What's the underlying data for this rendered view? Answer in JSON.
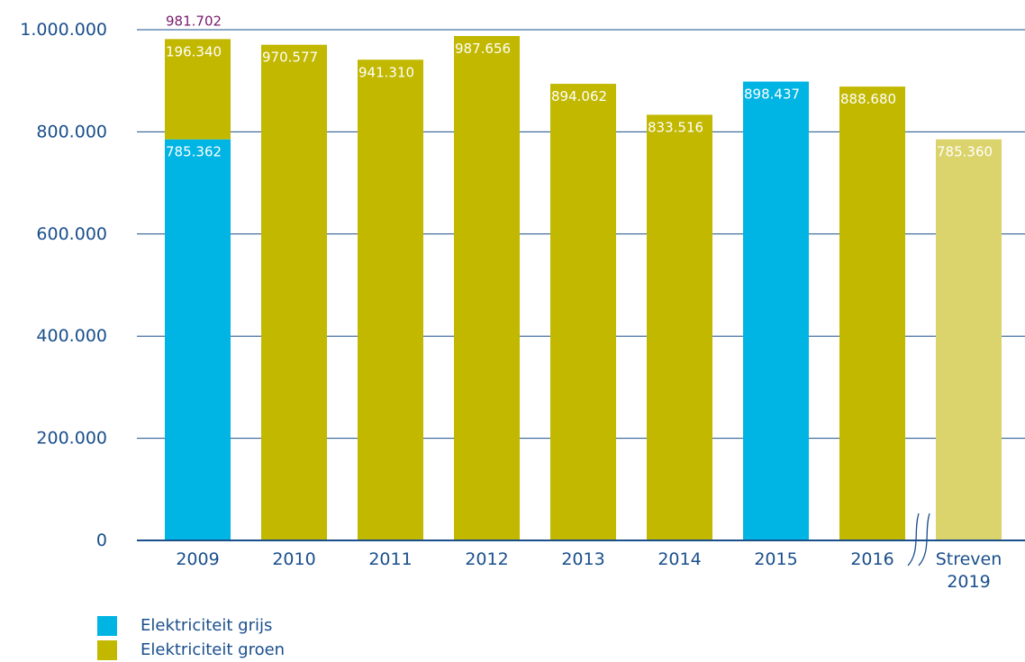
{
  "chart_data": {
    "type": "bar",
    "categories": [
      [
        "2009"
      ],
      [
        "2010"
      ],
      [
        "2011"
      ],
      [
        "2012"
      ],
      [
        "2013"
      ],
      [
        "2014"
      ],
      [
        "2015"
      ],
      [
        "2016"
      ],
      [
        "Streven",
        "2019"
      ]
    ],
    "series": [
      {
        "name": "Elektriciteit grijs",
        "values": [
          785362,
          0,
          0,
          0,
          0,
          0,
          898437,
          0,
          0
        ],
        "labels": [
          "785.362",
          "",
          "",
          "",
          "",
          "",
          "898.437",
          "",
          ""
        ]
      },
      {
        "name": "Elektriciteit groen",
        "values": [
          196340,
          970577,
          941310,
          987656,
          894062,
          833516,
          0,
          888680,
          785360
        ],
        "labels": [
          "196.340",
          "970.577",
          "941.310",
          "987.656",
          "894.062",
          "833.516",
          "",
          "888.680",
          "785.360"
        ]
      }
    ],
    "total_annotations": [
      "981.702",
      "",
      "",
      "",
      "",
      "",
      "",
      "",
      ""
    ],
    "ylim": [
      0,
      1000000
    ],
    "yticks": [
      0,
      200000,
      400000,
      600000,
      800000,
      1000000
    ],
    "ytick_labels": [
      "0",
      "200.000",
      "400.000",
      "600.000",
      "800.000",
      "1.000.000"
    ],
    "grid": true,
    "axis_break_before_last": true,
    "legend_position": "bottom-left",
    "colors": {
      "grijs": "#00b5e3",
      "groen": "#c2b800",
      "streven": "#dbd36b",
      "axis": "#1a4f8c",
      "annotation": "#7a1a6e"
    }
  },
  "legend": {
    "items": [
      {
        "label": "Elektriciteit grijs"
      },
      {
        "label": "Elektriciteit groen"
      }
    ]
  }
}
